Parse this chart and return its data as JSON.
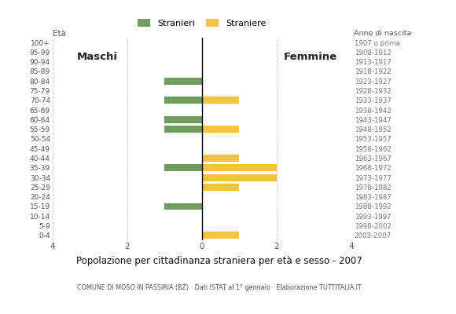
{
  "age_groups": [
    "0-4",
    "5-9",
    "10-14",
    "15-19",
    "20-24",
    "25-29",
    "30-34",
    "35-39",
    "40-44",
    "45-49",
    "50-54",
    "55-59",
    "60-64",
    "65-69",
    "70-74",
    "75-79",
    "80-84",
    "85-89",
    "90-94",
    "95-99",
    "100+"
  ],
  "birth_years": [
    "2003-2007",
    "1998-2002",
    "1993-1997",
    "1988-1992",
    "1983-1987",
    "1978-1982",
    "1973-1977",
    "1968-1972",
    "1963-1967",
    "1958-1962",
    "1953-1957",
    "1948-1952",
    "1943-1947",
    "1938-1942",
    "1933-1937",
    "1928-1932",
    "1923-1927",
    "1918-1922",
    "1913-1917",
    "1908-1912",
    "1907 o prima"
  ],
  "males": [
    0,
    0,
    0,
    1,
    0,
    0,
    0,
    1,
    0,
    0,
    0,
    1,
    1,
    0,
    1,
    0,
    1,
    0,
    0,
    0,
    0
  ],
  "females": [
    1,
    0,
    0,
    0,
    0,
    1,
    2,
    2,
    1,
    0,
    0,
    1,
    0,
    0,
    1,
    0,
    0,
    0,
    0,
    0,
    0
  ],
  "male_color": "#6e9e5e",
  "female_color": "#f5c242",
  "xlim": 4,
  "title": "Popolazione per cittadinanza straniera per età e sesso - 2007",
  "subtitle": "COMUNE DI MOSO IN PASSIRIA (BZ) · Dati ISTAT al 1° gennaio · Elaborazione TUTTITALIA.IT",
  "legend_male": "Stranieri",
  "legend_female": "Straniere",
  "maschi_label": "Maschi",
  "femmine_label": "Femmine",
  "eta_label": "Età",
  "anno_label": "Anno di nascita",
  "background_color": "#ffffff",
  "grid_color": "#cccccc",
  "bar_height": 0.72
}
